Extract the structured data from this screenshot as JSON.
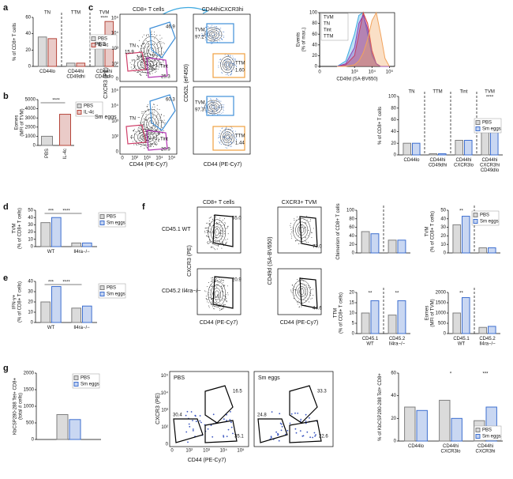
{
  "panel_labels": [
    "a",
    "b",
    "c",
    "d",
    "e",
    "f",
    "g"
  ],
  "flow_ticks": [
    "0",
    "10²",
    "10³",
    "10⁴",
    "10⁵"
  ],
  "flow_c": {
    "title_left": "CD8+ T cells",
    "title_mid": "CD44hiCXCR3hi",
    "rows": [
      "PBS",
      "Sm eggs"
    ],
    "x_label": "CD44 (PE-Cy7)",
    "y_label_left": "CXCR3 (PE)",
    "y_label_mid": "CD62L (eF450)",
    "gate_names": [
      "TVM",
      "TN",
      "Tint",
      "TTM"
    ],
    "left": [
      [
        46.9,
        15.9,
        25.3
      ],
      [
        60.3,
        20.9
      ]
    ],
    "mid": [
      [
        97.2,
        {
          "value": 1.6,
          "label": "1.60"
        }
      ],
      [
        97.3,
        1.44
      ]
    ]
  },
  "flow_f": {
    "titles": [
      "CD8+ T cells",
      "CXCR3+ TVM"
    ],
    "rows": [
      "CD45.1 WT",
      "CD45.2 Il4ra−/−"
    ],
    "x_label": "CD44 (PE-Cy7)",
    "y_labels": [
      "CXCR3 (PE)",
      "CD49d (SA-BV650)"
    ],
    "gates": [
      [
        {
          "value": 55,
          "label": "55.0"
        },
        {
          "value": 77,
          "label": "77.0"
        }
      ],
      [
        20.9,
        44.6
      ]
    ]
  },
  "flow_g": {
    "titles": [
      "PBS",
      "Sm eggs"
    ],
    "x_label": "CD44 (PE-Cy7)",
    "y_label": "CXCR3 (PE)",
    "gates": [
      [
        16.5,
        30.4,
        35.1
      ],
      [
        33.3,
        24.8,
        22.6
      ]
    ]
  },
  "chart_data": [
    {
      "type": "bar",
      "ylabel": "% of CD8+ T cells",
      "categories": [
        "CD44lo",
        "CD44hi CD49dhi",
        "CD44hi CD49dlo"
      ],
      "group_labels": [
        "TN",
        "TTM",
        "TVM"
      ],
      "series": [
        {
          "name": "PBS",
          "color": "#7f7f7f",
          "values": [
            36,
            4,
            35
          ]
        },
        {
          "name": "IL-4c",
          "color": "#b5453a",
          "values": [
            34,
            4,
            55
          ]
        }
      ],
      "ylim": [
        0,
        60
      ],
      "yticks": [
        0,
        20,
        40,
        60
      ],
      "legend": "center right",
      "annotations": [
        "****"
      ],
      "separators": true
    },
    {
      "type": "bar",
      "ylabel": "Eomes (MFI of TVM)",
      "categories": [
        "PBS",
        "IL-4c"
      ],
      "series": [
        {
          "name": "PBS",
          "color": "#7f7f7f",
          "values": [
            1000,
            null
          ]
        },
        {
          "name": "IL-4c",
          "color": "#b5453a",
          "values": [
            null,
            3400
          ]
        }
      ],
      "ylim": [
        0,
        5000
      ],
      "yticks": [
        0,
        1000,
        2000,
        3000,
        4000,
        5000
      ],
      "legend": "outside right",
      "annotations": [
        "****"
      ]
    },
    {
      "type": "line",
      "ylabel": "Events (% of max.)",
      "xlabel": "CD49d (SA-BV650)",
      "x": [
        2,
        2.5,
        3,
        3.25,
        3.5,
        3.75,
        4,
        4.25,
        4.5,
        4.75,
        5
      ],
      "series": [
        {
          "name": "TVM",
          "color": "#3fa9e0",
          "values": [
            0,
            10,
            60,
            95,
            100,
            60,
            20,
            5,
            0,
            0,
            0
          ]
        },
        {
          "name": "TN",
          "color": "#e0403a",
          "values": [
            0,
            3,
            20,
            60,
            100,
            80,
            30,
            5,
            0,
            0,
            0
          ]
        },
        {
          "name": "Tint",
          "color": "#8e3fb5",
          "values": [
            0,
            5,
            35,
            80,
            95,
            70,
            25,
            5,
            0,
            0,
            0
          ]
        },
        {
          "name": "TTM",
          "color": "#f2a35c",
          "values": [
            0,
            0,
            3,
            10,
            25,
            50,
            85,
            100,
            60,
            15,
            0
          ]
        }
      ],
      "xlim": [
        1,
        5.3
      ],
      "xticks": [
        {
          "value": 1,
          "label": "0"
        },
        {
          "value": 3,
          "label": "10³"
        },
        {
          "value": 4,
          "label": "10⁴"
        },
        {
          "value": 5,
          "label": "10⁵"
        }
      ],
      "ylim": [
        0,
        100
      ],
      "yticks": [
        0,
        20,
        40,
        60,
        80,
        100
      ],
      "legend": "upper left"
    },
    {
      "type": "bar",
      "ylabel": "% of CD8+ T cells",
      "categories": [
        "CD44lo",
        "CD44hi CD49dhi",
        "CD44hi CXCR3lo",
        "CD44hi CXCR3hi CD49dlo"
      ],
      "group_labels": [
        "TN",
        "TTM",
        "Tint",
        "TVM"
      ],
      "series": [
        {
          "name": "PBS",
          "color": "#7f7f7f",
          "values": [
            20,
            2,
            25,
            48
          ]
        },
        {
          "name": "Sm eggs",
          "color": "#3e6fcf",
          "values": [
            20,
            2,
            25,
            55
          ]
        }
      ],
      "ylim": [
        0,
        100
      ],
      "yticks": [
        0,
        20,
        40,
        60,
        80,
        100
      ],
      "legend": "center right",
      "annotations": [
        "****"
      ],
      "separators": true
    },
    {
      "type": "bar",
      "ylabel": "TVM (% of CD8+ T cells)",
      "categories": [
        "WT",
        "Il4ra−/−"
      ],
      "series": [
        {
          "name": "PBS",
          "color": "#7f7f7f",
          "values": [
            33,
            5
          ]
        },
        {
          "name": "Sm eggs",
          "color": "#3e6fcf",
          "values": [
            40,
            5
          ]
        }
      ],
      "ylim": [
        0,
        50
      ],
      "yticks": [
        0,
        10,
        20,
        30,
        40,
        50
      ],
      "legend": "outside right",
      "annotations": [
        "***",
        "****"
      ]
    },
    {
      "type": "bar",
      "ylabel": "IFN-γ+ (% of CD8+ T cells)",
      "categories": [
        "WT",
        "Il4ra−/−"
      ],
      "series": [
        {
          "name": "PBS",
          "color": "#7f7f7f",
          "values": [
            20,
            14
          ]
        },
        {
          "name": "Sm eggs",
          "color": "#3e6fcf",
          "values": [
            35,
            16
          ]
        }
      ],
      "ylim": [
        0,
        40
      ],
      "yticks": [
        0,
        10,
        20,
        30,
        40
      ],
      "legend": "outside right",
      "annotations": [
        "***",
        "****"
      ]
    },
    {
      "type": "bar",
      "ylabel": "Chimerism of CD8+ T cells",
      "categories": [
        null,
        null
      ],
      "series": [
        {
          "name": "PBS",
          "color": "#7f7f7f",
          "values": [
            50,
            30
          ]
        },
        {
          "name": "Sm eggs",
          "color": "#3e6fcf",
          "values": [
            45,
            30
          ]
        }
      ],
      "ylim": [
        0,
        100
      ],
      "yticks": [
        0,
        20,
        40,
        60,
        80,
        100
      ],
      "separators": true
    },
    {
      "type": "bar",
      "ylabel": "TVM (% of CD8+ T cells)",
      "categories": [
        null,
        null
      ],
      "series": [
        {
          "name": "PBS",
          "color": "#7f7f7f",
          "values": [
            33,
            6
          ]
        },
        {
          "name": "Sm eggs",
          "color": "#3e6fcf",
          "values": [
            43,
            6
          ]
        }
      ],
      "ylim": [
        0,
        50
      ],
      "yticks": [
        0,
        10,
        20,
        30,
        40,
        50
      ],
      "legend": "upper right",
      "annotations": [
        "**"
      ],
      "separators": true
    },
    {
      "type": "bar",
      "ylabel": "TTM (% of CD8+ T cells)",
      "categories": [
        "CD45.1 WT",
        "CD45.2 Il4ra−/−"
      ],
      "series": [
        {
          "name": "PBS",
          "color": "#7f7f7f",
          "values": [
            10,
            9
          ]
        },
        {
          "name": "Sm eggs",
          "color": "#3e6fcf",
          "values": [
            16,
            16
          ]
        }
      ],
      "ylim": [
        0,
        20
      ],
      "yticks": [
        0,
        5,
        10,
        15,
        20
      ],
      "annotations": [
        "**",
        "**"
      ],
      "separators": true
    },
    {
      "type": "bar",
      "ylabel": "Eomes (MFI of TVM)",
      "categories": [
        "CD45.1 WT",
        "CD45.2 Il4ra−/−"
      ],
      "series": [
        {
          "name": "PBS",
          "color": "#7f7f7f",
          "values": [
            1000,
            300
          ]
        },
        {
          "name": "Sm eggs",
          "color": "#3e6fcf",
          "values": [
            1750,
            350
          ]
        }
      ],
      "ylim": [
        0,
        2000
      ],
      "yticks": [
        0,
        500,
        1000,
        1500,
        2000
      ],
      "annotations": [
        "**"
      ],
      "separators": true
    },
    {
      "type": "bar",
      "ylabel": "KbCSP280-288 Tet+ CD8+ (total # cells)",
      "categories": [
        null
      ],
      "series": [
        {
          "name": "PBS",
          "color": "#7f7f7f",
          "values": [
            750
          ]
        },
        {
          "name": "Sm eggs",
          "color": "#3e6fcf",
          "values": [
            600
          ]
        }
      ],
      "ylim": [
        0,
        2000
      ],
      "yticks": [
        0,
        500,
        1000,
        1500,
        2000
      ],
      "legend": "upper right"
    },
    {
      "type": "bar",
      "ylabel": "% of KbCSP280-288 Tet+ CD8+",
      "categories": [
        "CD44lo",
        "CD44hi CXCR3lo",
        "CD44hi CXCR3hi"
      ],
      "series": [
        {
          "name": "PBS",
          "color": "#7f7f7f",
          "values": [
            30,
            36,
            18
          ]
        },
        {
          "name": "Sm eggs",
          "color": "#3e6fcf",
          "values": [
            27,
            20,
            30
          ]
        }
      ],
      "ylim": [
        0,
        60
      ],
      "yticks": [
        0,
        20,
        40,
        60
      ],
      "legend": "lower right",
      "annotations": [
        "*",
        "***"
      ]
    }
  ]
}
